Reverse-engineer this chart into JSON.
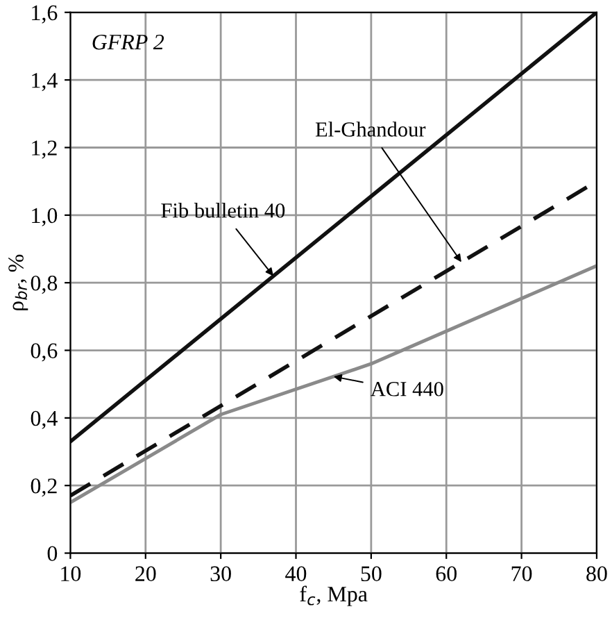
{
  "chart_data": {
    "type": "line",
    "xlabel": "f$_{c}$, Mpa",
    "ylabel": "ρ$_{br}$, %",
    "annotations": [
      "GFRP 2"
    ],
    "series": [
      {
        "name": "Fib bulletin 40",
        "color": "#111111",
        "x": [
          10,
          80
        ],
        "values": [
          0.33,
          1.6
        ],
        "line_style": "solid"
      },
      {
        "name": "El-Ghandour",
        "color": "#111111",
        "x": [
          10,
          80
        ],
        "values": [
          0.17,
          1.1
        ],
        "line_style": "dashed"
      },
      {
        "name": "ACI 440",
        "color": "#8a8a8a",
        "x": [
          10,
          30,
          50,
          80
        ],
        "values": [
          0.15,
          0.41,
          0.56,
          0.85
        ],
        "line_style": "solid"
      }
    ],
    "xlim": [
      10,
      80
    ],
    "xticks": [
      10,
      20,
      30,
      40,
      50,
      60,
      70,
      80
    ],
    "ylim": [
      0,
      1.6
    ],
    "yticks": [
      0,
      {
        "value": 0.2,
        "label": "0,2"
      },
      {
        "value": 0.4,
        "label": "0,4"
      },
      {
        "value": 0.6,
        "label": "0,6"
      },
      {
        "value": 0.8,
        "label": "0,8"
      },
      {
        "value": 1.0,
        "label": "1,0"
      },
      {
        "value": 1.2,
        "label": "1,2"
      },
      {
        "value": 1.4,
        "label": "1,4"
      },
      {
        "value": 1.6,
        "label": "1,6"
      }
    ],
    "grid": true,
    "legend": false,
    "marker": "none"
  }
}
